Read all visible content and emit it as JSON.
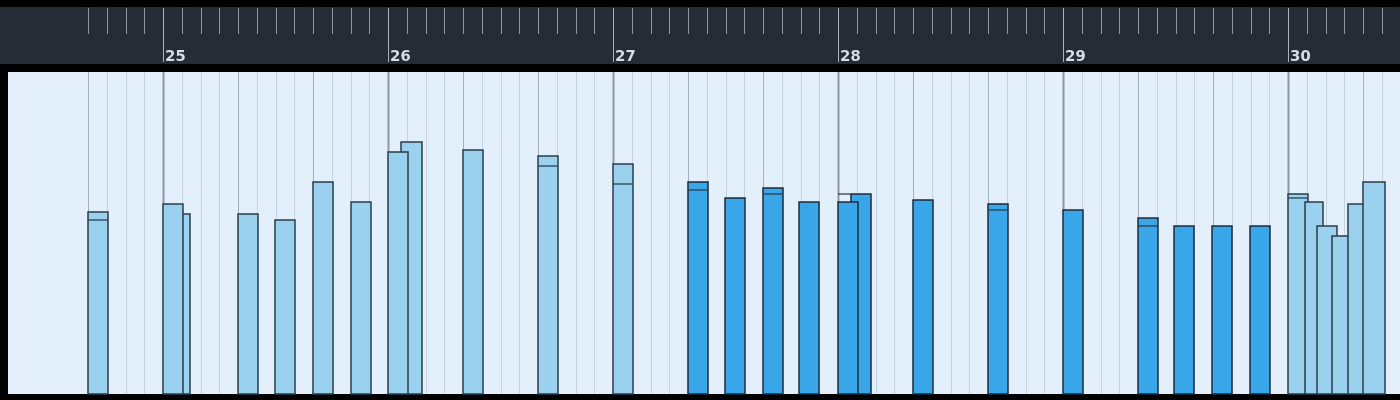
{
  "ruler": {
    "labels": [
      "25",
      "26",
      "27",
      "28",
      "29",
      "30"
    ]
  }
}
